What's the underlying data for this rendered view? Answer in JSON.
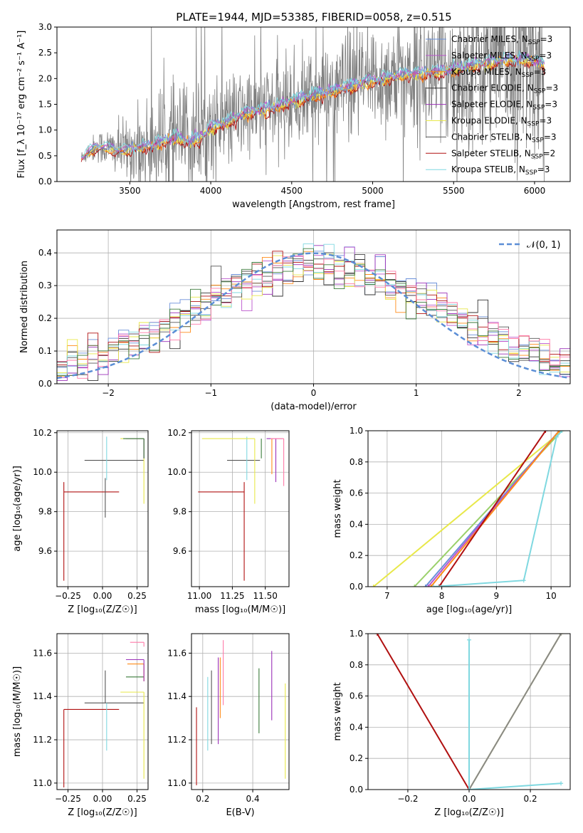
{
  "figure_title": "PLATE=1944, MJD=53385, FIBERID=0058, z=0.515",
  "colors": {
    "chabrier_miles": "#6a8fd9",
    "salpeter_miles": "#bb55cc",
    "kroupa_miles": "#ff8c1a",
    "chabrier_elodie": "#333333",
    "salpeter_elodie": "#9b30b8",
    "kroupa_elodie": "#e8e84a",
    "chabrier_stelib": "#555555",
    "salpeter_stelib": "#b01010",
    "kroupa_stelib": "#7fd8e0",
    "data": "#808080",
    "normal": "#5b8ed6",
    "extra_pink": "#ff7aa8",
    "extra_green": "#3a7a3a"
  },
  "chart_data": [
    {
      "id": "spectrum",
      "type": "line",
      "title": "PLATE=1944, MJD=53385, FIBERID=0058, z=0.515",
      "xlabel": "wavelength [Angstrom, rest frame]",
      "ylabel": "Flux [f_λ 10⁻¹⁷ erg cm⁻² s⁻¹ A⁻¹]",
      "xlim": [
        3050,
        6220
      ],
      "ylim": [
        0,
        3.0
      ],
      "xticks": [
        "3500",
        "4000",
        "4500",
        "5000",
        "5500",
        "6000"
      ],
      "yticks": [
        "0.0",
        "0.5",
        "1.0",
        "1.5",
        "2.0",
        "2.5",
        "3.0"
      ],
      "legend_position": "top-right",
      "legend": [
        {
          "label": "Chabrier MILES, N",
          "sub": "SSP",
          "suffix": "=3",
          "color": "#6a8fd9"
        },
        {
          "label": "Salpeter MILES, N",
          "sub": "SSP",
          "suffix": "=3",
          "color": "#bb55cc"
        },
        {
          "label": "Kroupa MILES, N",
          "sub": "SSP",
          "suffix": "=3",
          "color": "#ff8c1a"
        },
        {
          "label": "Chabrier ELODIE, N",
          "sub": "SSP",
          "suffix": "=3",
          "color": "#333333"
        },
        {
          "label": "Salpeter ELODIE, N",
          "sub": "SSP",
          "suffix": "=3",
          "color": "#9b30b8"
        },
        {
          "label": "Kroupa ELODIE, N",
          "sub": "SSP",
          "suffix": "=3",
          "color": "#e8e84a"
        },
        {
          "label": "Chabrier STELIB, N",
          "sub": "SSP",
          "suffix": "=3",
          "color": "#555555"
        },
        {
          "label": "Salpeter STELIB, N",
          "sub": "SSP",
          "suffix": "=2",
          "color": "#b01010"
        },
        {
          "label": "Kroupa STELIB, N",
          "sub": "SSP",
          "suffix": "=3",
          "color": "#7fd8e0"
        }
      ],
      "model_continuum": {
        "x": [
          3200,
          3250,
          3300,
          3350,
          3400,
          3450,
          3500,
          3550,
          3600,
          3650,
          3700,
          3750,
          3800,
          3850,
          3900,
          3950,
          4000,
          4100,
          4200,
          4300,
          4400,
          4500,
          4600,
          4700,
          4800,
          4900,
          5000,
          5100,
          5200,
          5300,
          5400,
          5500,
          5600,
          5700,
          5800,
          5900,
          6000,
          6060
        ],
        "y": [
          0.45,
          0.6,
          0.68,
          0.66,
          0.62,
          0.6,
          0.62,
          0.65,
          0.68,
          0.72,
          0.78,
          0.82,
          0.85,
          0.78,
          0.8,
          0.9,
          1.05,
          1.15,
          1.32,
          1.38,
          1.45,
          1.55,
          1.65,
          1.72,
          1.8,
          1.88,
          1.95,
          2.02,
          2.08,
          2.1,
          2.12,
          2.18,
          2.25,
          2.3,
          2.35,
          2.38,
          2.33,
          2.28
        ]
      },
      "data_noise_amplitude": {
        "x": [
          3200,
          3500,
          3700,
          3900,
          4100,
          4500,
          5000,
          5500,
          5800,
          6060
        ],
        "y": [
          0.08,
          0.35,
          0.6,
          0.6,
          0.5,
          0.5,
          0.6,
          0.8,
          1.0,
          1.0
        ]
      }
    },
    {
      "id": "residuals",
      "type": "histogram",
      "xlabel": "(data-model)/error",
      "ylabel": "Normed distribution",
      "xlim": [
        -2.5,
        2.5
      ],
      "ylim": [
        0,
        0.47
      ],
      "xticks": [
        "−2",
        "−1",
        "0",
        "1",
        "2"
      ],
      "yticks": [
        "0.0",
        "0.1",
        "0.2",
        "0.3",
        "0.4"
      ],
      "legend": [
        {
          "label": "𝒩(0, 1)",
          "color": "#5b8ed6"
        }
      ],
      "legend_position": "top-right",
      "bin_width": 0.1
    },
    {
      "id": "age-vs-Z",
      "type": "errorbar",
      "xlabel": "Z [log₁₀(Z/Z☉)]",
      "ylabel": "age  [log₁₀(age/yr)]",
      "xlim": [
        -0.33,
        0.33
      ],
      "ylim": [
        9.42,
        10.21
      ],
      "xticks": [
        -0.25,
        0.0,
        0.25
      ],
      "xticklabels": [
        "−0.25",
        "0.00",
        "0.25"
      ],
      "yticks": [
        9.6,
        9.8,
        10.0,
        10.2
      ],
      "yticklabels": [
        "9.6",
        "9.8",
        "10.0",
        "10.2"
      ],
      "points": [
        {
          "x": -0.28,
          "y": 9.9,
          "xerr": [
            0.0,
            0.4
          ],
          "yerr": [
            0.45,
            0.05
          ],
          "color": "#b01010"
        },
        {
          "x": 0.02,
          "y": 9.9,
          "xerr": [
            0.0,
            0.0
          ],
          "yerr": [
            0.13,
            0.07
          ],
          "color": "#555555"
        },
        {
          "x": 0.02,
          "y": 10.06,
          "xerr": [
            0.15,
            0.28
          ],
          "yerr": [
            0.0,
            0.0
          ],
          "color": "#555555"
        },
        {
          "x": 0.03,
          "y": 10.06,
          "xerr": [
            0.0,
            0.0
          ],
          "yerr": [
            0.1,
            0.12
          ],
          "color": "#7fd8e0"
        },
        {
          "x": 0.3,
          "y": 10.17,
          "xerr": [
            0.17,
            0.0
          ],
          "yerr": [
            0.33,
            0.0
          ],
          "color": "#e8e84a"
        },
        {
          "x": 0.3,
          "y": 10.17,
          "xerr": [
            0.13,
            0.0
          ],
          "yerr": [
            0.1,
            0.0
          ],
          "color": "#9b30b8"
        },
        {
          "x": 0.3,
          "y": 10.17,
          "xerr": [
            0.15,
            0.0
          ],
          "yerr": [
            0.1,
            0.0
          ],
          "color": "#3a7a3a"
        }
      ]
    },
    {
      "id": "age-vs-mass",
      "type": "errorbar",
      "xlabel": "mass [log₁₀(M/M☉)]",
      "xlim": [
        10.94,
        11.68
      ],
      "ylim": [
        9.42,
        10.21
      ],
      "xticks": [
        11.0,
        11.25,
        11.5
      ],
      "xticklabels": [
        "11.00",
        "11.25",
        "11.50"
      ],
      "yticks": [
        9.6,
        9.8,
        10.0,
        10.2
      ],
      "yticklabels": [
        "9.6",
        "9.8",
        "10.0",
        "10.2"
      ],
      "points": [
        {
          "x": 11.34,
          "y": 9.9,
          "xerr": [
            0.35,
            0.0
          ],
          "yerr": [
            0.45,
            0.05
          ],
          "color": "#b01010"
        },
        {
          "x": 11.36,
          "y": 10.06,
          "xerr": [
            0.15,
            0.1
          ],
          "yerr": [
            0.0,
            0.0
          ],
          "color": "#555555"
        },
        {
          "x": 11.36,
          "y": 10.06,
          "xerr": [
            0.0,
            0.0
          ],
          "yerr": [
            0.1,
            0.12
          ],
          "color": "#7fd8e0"
        },
        {
          "x": 11.42,
          "y": 10.17,
          "xerr": [
            0.4,
            0.0
          ],
          "yerr": [
            0.33,
            0.0
          ],
          "color": "#e8e84a"
        },
        {
          "x": 11.47,
          "y": 10.17,
          "xerr": [
            0.0,
            0.0
          ],
          "yerr": [
            0.1,
            0.0
          ],
          "color": "#3a7a3a"
        },
        {
          "x": 11.55,
          "y": 10.17,
          "xerr": [
            0.0,
            0.0
          ],
          "yerr": [
            0.18,
            0.0
          ],
          "color": "#ff8c1a"
        },
        {
          "x": 11.58,
          "y": 10.17,
          "xerr": [
            0.07,
            0.05
          ],
          "yerr": [
            0.22,
            0.0
          ],
          "color": "#9b30b8"
        },
        {
          "x": 11.64,
          "y": 10.17,
          "xerr": [
            0.1,
            0.0
          ],
          "yerr": [
            0.24,
            0.0
          ],
          "color": "#ff7aa8"
        }
      ]
    },
    {
      "id": "mass-weight-vs-age",
      "type": "line",
      "xlabel": "age  [log₁₀(age/yr)]",
      "ylabel": "mass weight",
      "xlim": [
        6.65,
        10.35
      ],
      "ylim": [
        0,
        1.0
      ],
      "xticks": [
        7,
        8,
        9,
        10
      ],
      "xticklabels": [
        "7",
        "8",
        "9",
        "10"
      ],
      "yticks": [
        0,
        0.2,
        0.4,
        0.6,
        0.8,
        1.0
      ],
      "yticklabels": [
        "0.0",
        "0.2",
        "0.4",
        "0.6",
        "0.8",
        "1.0"
      ],
      "series": [
        {
          "color": "#e8e84a",
          "x": [
            6.75,
            10.2
          ],
          "y": [
            0.0,
            1.0
          ]
        },
        {
          "color": "#9ad06a",
          "x": [
            7.5,
            10.2
          ],
          "y": [
            0.0,
            1.0
          ]
        },
        {
          "color": "#6a8fd9",
          "x": [
            7.7,
            10.15
          ],
          "y": [
            0.0,
            1.0
          ]
        },
        {
          "color": "#bb55cc",
          "x": [
            7.75,
            10.15
          ],
          "y": [
            0.0,
            1.0
          ]
        },
        {
          "color": "#ff8c1a",
          "x": [
            7.8,
            10.15
          ],
          "y": [
            0.0,
            1.0
          ]
        },
        {
          "color": "#b01010",
          "x": [
            7.95,
            9.9
          ],
          "y": [
            0.0,
            1.0
          ]
        },
        {
          "color": "#7fd8e0",
          "x": [
            7.85,
            9.5,
            10.1,
            10.2
          ],
          "y": [
            0.0,
            0.04,
            0.96,
            1.0
          ]
        }
      ]
    },
    {
      "id": "mass-vs-Z",
      "type": "errorbar",
      "xlabel": "Z [log₁₀(Z/Z☉)]",
      "ylabel": "mass [log₁₀(M/M☉)]",
      "xlim": [
        -0.33,
        0.33
      ],
      "ylim": [
        10.97,
        11.69
      ],
      "xticks": [
        -0.25,
        0.0,
        0.25
      ],
      "xticklabels": [
        "−0.25",
        "0.00",
        "0.25"
      ],
      "yticks": [
        11.0,
        11.2,
        11.4,
        11.6
      ],
      "yticklabels": [
        "11.0",
        "11.2",
        "11.4",
        "11.6"
      ],
      "points": [
        {
          "x": -0.28,
          "y": 11.34,
          "xerr": [
            0.0,
            0.4
          ],
          "yerr": [
            0.36,
            0.0
          ],
          "color": "#b01010"
        },
        {
          "x": 0.02,
          "y": 11.37,
          "xerr": [
            0.15,
            0.28
          ],
          "yerr": [
            0.0,
            0.0
          ],
          "color": "#555555"
        },
        {
          "x": 0.02,
          "y": 11.37,
          "xerr": [
            0.0,
            0.0
          ],
          "yerr": [
            0.0,
            0.15
          ],
          "color": "#555555"
        },
        {
          "x": 0.03,
          "y": 11.37,
          "xerr": [
            0.0,
            0.0
          ],
          "yerr": [
            0.22,
            0.0
          ],
          "color": "#7fd8e0"
        },
        {
          "x": 0.3,
          "y": 11.42,
          "xerr": [
            0.17,
            0.0
          ],
          "yerr": [
            0.4,
            0.0
          ],
          "color": "#e8e84a"
        },
        {
          "x": 0.3,
          "y": 11.49,
          "xerr": [
            0.13,
            0.0
          ],
          "yerr": [
            0.0,
            0.0
          ],
          "color": "#3a7a3a"
        },
        {
          "x": 0.3,
          "y": 11.55,
          "xerr": [
            0.12,
            0.0
          ],
          "yerr": [
            0.08,
            0.0
          ],
          "color": "#ff8c1a"
        },
        {
          "x": 0.3,
          "y": 11.57,
          "xerr": [
            0.13,
            0.0
          ],
          "yerr": [
            0.1,
            0.0
          ],
          "color": "#9b30b8"
        },
        {
          "x": 0.3,
          "y": 11.65,
          "xerr": [
            0.1,
            0.0
          ],
          "yerr": [
            0.02,
            0.0
          ],
          "color": "#ff7aa8"
        }
      ]
    },
    {
      "id": "mass-vs-EBV",
      "type": "errorbar",
      "xlabel": "E(B-V)",
      "xlim": [
        0.155,
        0.545
      ],
      "ylim": [
        10.97,
        11.69
      ],
      "xticks": [
        0.2,
        0.4
      ],
      "xticklabels": [
        "0.2",
        "0.4"
      ],
      "yticks": [
        11.0,
        11.2,
        11.4,
        11.6
      ],
      "yticklabels": [
        "11.0",
        "11.2",
        "11.4",
        "11.6"
      ],
      "points": [
        {
          "x": 0.175,
          "y": 11.17,
          "yerr": [
            0.18,
            0.18
          ],
          "color": "#b01010"
        },
        {
          "x": 0.22,
          "y": 11.32,
          "yerr": [
            0.17,
            0.17
          ],
          "color": "#7fd8e0"
        },
        {
          "x": 0.235,
          "y": 11.35,
          "yerr": [
            0.17,
            0.17
          ],
          "color": "#555555"
        },
        {
          "x": 0.262,
          "y": 11.38,
          "yerr": [
            0.2,
            0.2
          ],
          "color": "#9b30b8"
        },
        {
          "x": 0.27,
          "y": 11.44,
          "yerr": [
            0.14,
            0.14
          ],
          "color": "#ff8c1a"
        },
        {
          "x": 0.282,
          "y": 11.51,
          "yerr": [
            0.15,
            0.15
          ],
          "color": "#ff7aa8"
        },
        {
          "x": 0.425,
          "y": 11.38,
          "yerr": [
            0.15,
            0.15
          ],
          "color": "#3a7a3a"
        },
        {
          "x": 0.476,
          "y": 11.45,
          "yerr": [
            0.16,
            0.16
          ],
          "color": "#9b30b8"
        },
        {
          "x": 0.53,
          "y": 11.24,
          "yerr": [
            0.22,
            0.22
          ],
          "color": "#e8e84a"
        }
      ]
    },
    {
      "id": "mass-weight-vs-Z",
      "type": "line",
      "xlabel": "Z [log₁₀(Z/Z☉)]",
      "ylabel": "mass weight",
      "xlim": [
        -0.33,
        0.33
      ],
      "ylim": [
        0,
        1.0
      ],
      "xticks": [
        -0.2,
        0.0,
        0.2
      ],
      "xticklabels": [
        "−0.2",
        "0.0",
        "0.2"
      ],
      "yticks": [
        0,
        0.2,
        0.4,
        0.6,
        0.8,
        1.0
      ],
      "yticklabels": [
        "0.0",
        "0.2",
        "0.4",
        "0.6",
        "0.8",
        "1.0"
      ],
      "series": [
        {
          "color": "#b01010",
          "x": [
            -0.3,
            0.0
          ],
          "y": [
            1.0,
            0.0
          ]
        },
        {
          "color": "#e8e84a",
          "x": [
            0.0,
            0.3
          ],
          "y": [
            0.0,
            1.0
          ]
        },
        {
          "color": "#888888",
          "x": [
            0.0,
            0.3
          ],
          "y": [
            0.0,
            1.0
          ]
        },
        {
          "color": "#7fd8e0",
          "x": [
            0.0,
            0.0
          ],
          "y": [
            0.0,
            0.96
          ]
        },
        {
          "color": "#7fd8e0",
          "x": [
            0.0,
            0.3
          ],
          "y": [
            0.0,
            0.04
          ]
        }
      ]
    }
  ]
}
